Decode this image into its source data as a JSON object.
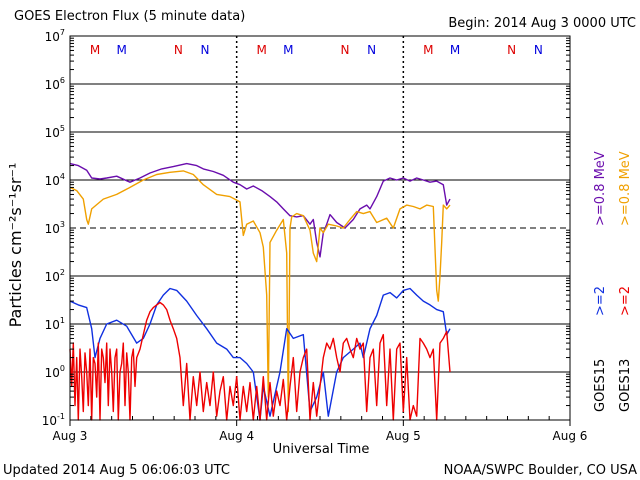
{
  "chart_data": {
    "type": "line",
    "title": "GOES Electron Flux (5 minute data)",
    "begin_label": "Begin: 2014 Aug 3 0000 UTC",
    "xlabel": "Universal Time",
    "ylabel": "Particles cm⁻²s⁻¹sr⁻¹",
    "x_ticks": [
      "Aug 3",
      "Aug 4",
      "Aug 5",
      "Aug 6"
    ],
    "xlim_days": [
      0,
      3
    ],
    "yscale": "log",
    "ylim": [
      0.1,
      10000000
    ],
    "y_ticks": [
      {
        "base": "10",
        "exp": "7"
      },
      {
        "base": "10",
        "exp": "6"
      },
      {
        "base": "10",
        "exp": "5"
      },
      {
        "base": "10",
        "exp": "4"
      },
      {
        "base": "10",
        "exp": "3"
      },
      {
        "base": "10",
        "exp": "2"
      },
      {
        "base": "10",
        "exp": "1"
      },
      {
        "base": "10",
        "exp": "0"
      },
      {
        "base": "10",
        "exp": "-1"
      }
    ],
    "threshold": 1000,
    "right_labels": {
      "sat_top": "GOES15",
      "sat_bottom": "GOES13",
      "e08_g15": ">=0.8 MeV",
      "e08_g13": ">=0.8 MeV",
      "e2_g15": ">=2",
      "e2_g13": ">=2"
    },
    "markers": [
      {
        "day": 0.15,
        "text": "M",
        "color": "#dd0000"
      },
      {
        "day": 0.31,
        "text": "M",
        "color": "#0000dd"
      },
      {
        "day": 0.65,
        "text": "N",
        "color": "#dd0000"
      },
      {
        "day": 0.81,
        "text": "N",
        "color": "#0000dd"
      },
      {
        "day": 1.15,
        "text": "M",
        "color": "#dd0000"
      },
      {
        "day": 1.31,
        "text": "M",
        "color": "#0000dd"
      },
      {
        "day": 1.65,
        "text": "N",
        "color": "#dd0000"
      },
      {
        "day": 1.81,
        "text": "N",
        "color": "#0000dd"
      },
      {
        "day": 2.15,
        "text": "M",
        "color": "#dd0000"
      },
      {
        "day": 2.31,
        "text": "M",
        "color": "#0000dd"
      },
      {
        "day": 2.65,
        "text": "N",
        "color": "#dd0000"
      },
      {
        "day": 2.81,
        "text": "N",
        "color": "#0000dd"
      }
    ],
    "series": [
      {
        "name": "GOES15 >=0.8 MeV",
        "color": "#6a0dad",
        "x": [
          0.0,
          0.05,
          0.1,
          0.13,
          0.18,
          0.22,
          0.28,
          0.36,
          0.42,
          0.48,
          0.55,
          0.62,
          0.7,
          0.76,
          0.8,
          0.86,
          0.92,
          0.98,
          1.02,
          1.06,
          1.1,
          1.15,
          1.2,
          1.24,
          1.28,
          1.32,
          1.36,
          1.4,
          1.44,
          1.46,
          1.48,
          1.5,
          1.52,
          1.54,
          1.56,
          1.6,
          1.65,
          1.7,
          1.74,
          1.78,
          1.8,
          1.84,
          1.88,
          1.92,
          1.96,
          2.0,
          2.04,
          2.08,
          2.12,
          2.16,
          2.2,
          2.24,
          2.26,
          2.28
        ],
        "y": [
          22000,
          20000,
          16000,
          11000,
          10500,
          11000,
          12000,
          9000,
          11000,
          14000,
          17000,
          19000,
          22000,
          20000,
          17000,
          15000,
          12500,
          9000,
          8000,
          6500,
          7500,
          6000,
          4500,
          3500,
          2500,
          1800,
          1700,
          1800,
          1200,
          1500,
          500,
          250,
          800,
          1200,
          1900,
          1300,
          1000,
          1500,
          2500,
          3000,
          2500,
          4500,
          9500,
          11000,
          10000,
          11000,
          9500,
          11000,
          10000,
          9000,
          9500,
          8000,
          3000,
          4000
        ]
      },
      {
        "name": "GOES13 >=0.8 MeV",
        "color": "#f0a000",
        "x": [
          0.0,
          0.04,
          0.08,
          0.1,
          0.11,
          0.13,
          0.2,
          0.28,
          0.36,
          0.44,
          0.52,
          0.6,
          0.68,
          0.74,
          0.8,
          0.88,
          0.96,
          1.02,
          1.04,
          1.06,
          1.1,
          1.14,
          1.16,
          1.18,
          1.19,
          1.2,
          1.24,
          1.28,
          1.3,
          1.31,
          1.32,
          1.33,
          1.36,
          1.4,
          1.44,
          1.46,
          1.48,
          1.5,
          1.52,
          1.55,
          1.6,
          1.64,
          1.68,
          1.72,
          1.76,
          1.8,
          1.84,
          1.9,
          1.94,
          1.98,
          2.02,
          2.06,
          2.1,
          2.14,
          2.18,
          2.2,
          2.21,
          2.22,
          2.23,
          2.24,
          2.26,
          2.28
        ],
        "y": [
          7000,
          6000,
          4000,
          1500,
          1200,
          2500,
          4000,
          5000,
          7000,
          10000,
          13000,
          14500,
          15500,
          13000,
          8000,
          5000,
          4500,
          3500,
          700,
          1200,
          1400,
          800,
          400,
          40,
          0.3,
          500,
          900,
          1500,
          300,
          0.15,
          1000,
          1700,
          2000,
          1800,
          900,
          300,
          200,
          1000,
          800,
          1200,
          1100,
          1000,
          1500,
          2200,
          2000,
          2200,
          1300,
          1600,
          1000,
          2500,
          3000,
          2800,
          2500,
          3000,
          2800,
          50,
          30,
          100,
          500,
          3000,
          2500,
          3000
        ]
      },
      {
        "name": "GOES15 >=2",
        "color": "#1030e0",
        "x": [
          0.0,
          0.05,
          0.1,
          0.13,
          0.15,
          0.18,
          0.22,
          0.28,
          0.34,
          0.4,
          0.44,
          0.48,
          0.52,
          0.56,
          0.6,
          0.64,
          0.7,
          0.76,
          0.82,
          0.88,
          0.94,
          0.98,
          1.02,
          1.06,
          1.1,
          1.14,
          1.16,
          1.2,
          1.26,
          1.3,
          1.34,
          1.4,
          1.44,
          1.48,
          1.52,
          1.55,
          1.6,
          1.64,
          1.7,
          1.74,
          1.76,
          1.8,
          1.84,
          1.88,
          1.92,
          1.96,
          2.0,
          2.04,
          2.08,
          2.12,
          2.16,
          2.2,
          2.24,
          2.26,
          2.28
        ],
        "y": [
          30,
          25,
          22,
          8,
          2,
          5,
          10,
          12,
          9,
          4,
          5,
          10,
          25,
          40,
          55,
          50,
          30,
          15,
          8,
          4,
          3,
          2,
          2,
          1.5,
          1,
          0.1,
          0.5,
          0.12,
          1,
          8,
          5,
          6,
          0.15,
          0.3,
          1,
          0.12,
          1,
          2,
          3,
          4,
          2,
          8,
          15,
          40,
          45,
          35,
          50,
          55,
          40,
          30,
          25,
          20,
          18,
          6,
          8
        ]
      },
      {
        "name": "GOES13 >=2",
        "color": "#ee0000",
        "x": [
          0.0,
          0.01,
          0.02,
          0.03,
          0.04,
          0.05,
          0.06,
          0.07,
          0.08,
          0.09,
          0.1,
          0.11,
          0.12,
          0.13,
          0.14,
          0.15,
          0.16,
          0.17,
          0.18,
          0.19,
          0.2,
          0.21,
          0.22,
          0.23,
          0.24,
          0.25,
          0.26,
          0.27,
          0.28,
          0.29,
          0.3,
          0.31,
          0.32,
          0.33,
          0.34,
          0.35,
          0.36,
          0.37,
          0.38,
          0.39,
          0.4,
          0.42,
          0.44,
          0.46,
          0.48,
          0.5,
          0.52,
          0.54,
          0.56,
          0.58,
          0.6,
          0.62,
          0.64,
          0.66,
          0.68,
          0.7,
          0.72,
          0.74,
          0.76,
          0.78,
          0.8,
          0.82,
          0.84,
          0.86,
          0.88,
          0.9,
          0.92,
          0.94,
          0.96,
          0.98,
          1.0,
          1.02,
          1.04,
          1.06,
          1.08,
          1.1,
          1.12,
          1.14,
          1.16,
          1.18,
          1.2,
          1.22,
          1.24,
          1.26,
          1.28,
          1.3,
          1.32,
          1.34,
          1.36,
          1.38,
          1.4,
          1.42,
          1.44,
          1.46,
          1.48,
          1.5,
          1.52,
          1.54,
          1.56,
          1.58,
          1.6,
          1.62,
          1.64,
          1.66,
          1.68,
          1.7,
          1.72,
          1.74,
          1.76,
          1.78,
          1.8,
          1.82,
          1.84,
          1.86,
          1.88,
          1.9,
          1.92,
          1.94,
          1.96,
          1.98,
          2.0,
          2.02,
          2.04,
          2.06,
          2.08,
          2.1,
          2.12,
          2.14,
          2.16,
          2.18,
          2.2,
          2.22,
          2.24,
          2.26,
          2.28
        ],
        "y": [
          3,
          0.5,
          4,
          0.2,
          2,
          0.1,
          3,
          0.8,
          0.15,
          2.5,
          1,
          0.2,
          3,
          0.1,
          2,
          1.5,
          0.3,
          4,
          0.1,
          3,
          2,
          0.6,
          4,
          0.2,
          3,
          1,
          0.15,
          2,
          3,
          0.1,
          1,
          1.5,
          4,
          0.2,
          2.5,
          1,
          0.1,
          2,
          3,
          0.5,
          2,
          3,
          6,
          12,
          18,
          22,
          25,
          28,
          25,
          20,
          12,
          8,
          5,
          2,
          0.2,
          1.5,
          0.1,
          0.8,
          0.2,
          1,
          0.15,
          0.6,
          0.2,
          1,
          0.12,
          0.4,
          0.8,
          0.1,
          0.5,
          0.2,
          0.8,
          0.1,
          0.5,
          0.15,
          0.6,
          0.1,
          0.5,
          0.1,
          0.8,
          0.1,
          0.6,
          0.12,
          0.4,
          0.2,
          0.7,
          0.1,
          0.5,
          2,
          0.15,
          1,
          2,
          3,
          0.1,
          0.6,
          0.12,
          0.5,
          2,
          4,
          3,
          5,
          2,
          1,
          4,
          5,
          3,
          2,
          5,
          3,
          4,
          0.15,
          2,
          3,
          0.2,
          4,
          6,
          0.2,
          3,
          0.1,
          3,
          4,
          0.15,
          2,
          0.1,
          0.2,
          0.12,
          5,
          4,
          3,
          2,
          3,
          0.1,
          4,
          5,
          7,
          1
        ]
      }
    ]
  },
  "footer": {
    "updated": "Updated 2014 Aug  5 06:06:03 UTC",
    "credit": "NOAA/SWPC Boulder, CO USA"
  }
}
